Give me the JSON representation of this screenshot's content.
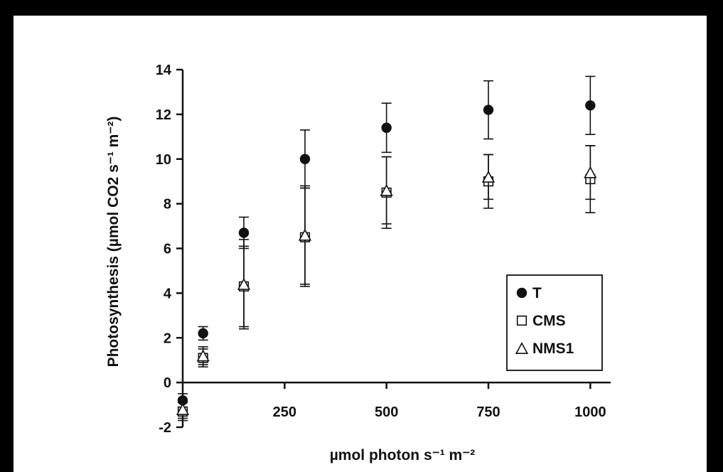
{
  "chart_data": {
    "type": "scatter",
    "xlabel": "µmol photon s⁻¹ m⁻²",
    "ylabel": "Photosynthesis (µmol CO2 s⁻¹ m⁻²)",
    "xlim": [
      0,
      1050
    ],
    "ylim": [
      -2,
      14
    ],
    "xticks": [
      250,
      500,
      750,
      1000
    ],
    "yticks": [
      -2,
      0,
      2,
      4,
      6,
      8,
      10,
      12,
      14
    ],
    "legend_position": "lower-right",
    "x": [
      0,
      50,
      150,
      300,
      500,
      750,
      1000
    ],
    "series": [
      {
        "name": "T",
        "marker": "filled-circle",
        "values": [
          -0.8,
          2.2,
          6.7,
          10.0,
          11.4,
          12.2,
          12.4
        ],
        "error": [
          0.3,
          0.3,
          0.7,
          1.3,
          1.1,
          1.3,
          1.3
        ]
      },
      {
        "name": "CMS",
        "marker": "open-square",
        "values": [
          -1.3,
          1.1,
          4.3,
          6.5,
          8.5,
          9.0,
          9.1
        ],
        "error": [
          0.4,
          0.4,
          1.8,
          2.2,
          1.6,
          1.2,
          1.5
        ]
      },
      {
        "name": "NMS1",
        "marker": "open-triangle",
        "values": [
          -1.2,
          1.2,
          4.4,
          6.6,
          8.6,
          9.2,
          9.4
        ],
        "error": [
          0.4,
          0.4,
          2.0,
          2.2,
          1.5,
          1.0,
          1.2
        ]
      }
    ]
  }
}
